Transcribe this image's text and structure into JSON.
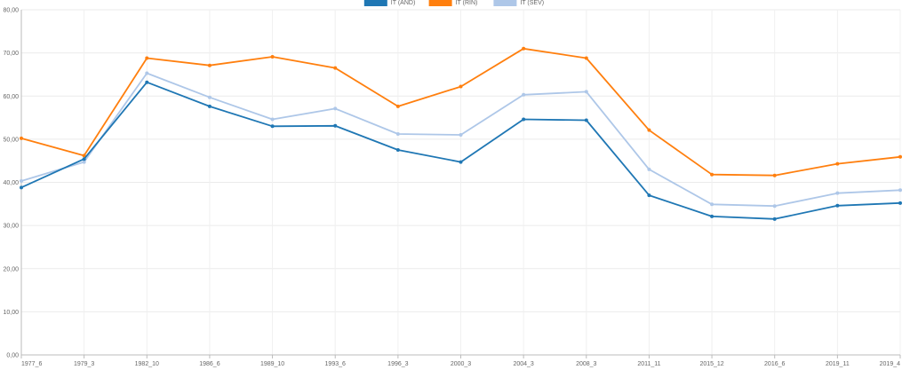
{
  "chart_data": {
    "type": "line",
    "title": "",
    "xlabel": "",
    "ylabel": "",
    "ylim": [
      0,
      80
    ],
    "y_ticks": [
      "0,00",
      "10,00",
      "20,00",
      "30,00",
      "40,00",
      "50,00",
      "60,00",
      "70,00",
      "80,00"
    ],
    "grid": true,
    "legend_position": "top-center",
    "categories": [
      "1977_6",
      "1979_3",
      "1982_10",
      "1986_6",
      "1989_10",
      "1993_6",
      "1996_3",
      "2000_3",
      "2004_3",
      "2008_3",
      "2011_11",
      "2015_12",
      "2016_6",
      "2019_11",
      "2019_4"
    ],
    "series": [
      {
        "name": "IT (AND)",
        "color": "#1f77b4",
        "values": [
          38.8,
          45.4,
          63.2,
          57.6,
          53.0,
          53.1,
          47.5,
          44.7,
          54.6,
          54.4,
          37.0,
          32.1,
          31.5,
          34.6,
          35.2
        ]
      },
      {
        "name": "IT (RIN)",
        "color": "#ff7f0e",
        "values": [
          50.2,
          46.2,
          68.8,
          67.1,
          69.1,
          66.5,
          57.6,
          62.2,
          71.0,
          68.8,
          52.1,
          41.8,
          41.6,
          44.3,
          45.9
        ]
      },
      {
        "name": "IT (SEV)",
        "color": "#aec7e8",
        "values": [
          40.3,
          44.7,
          65.3,
          59.7,
          54.6,
          57.1,
          51.2,
          51.0,
          60.3,
          61.0,
          43.0,
          34.9,
          34.5,
          37.5,
          38.2
        ]
      }
    ]
  }
}
